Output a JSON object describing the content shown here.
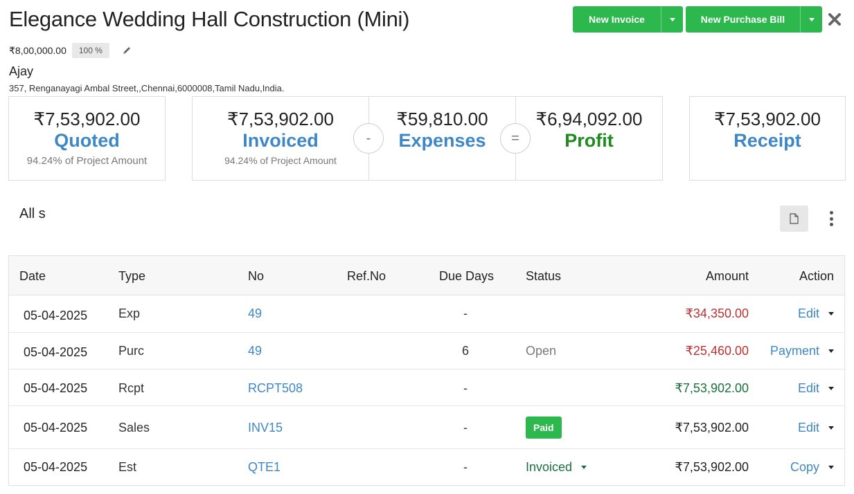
{
  "header": {
    "title": "Elegance Wedding Hall Construction (Mini)",
    "project_amount": "₹8,00,000.00",
    "percent_badge": "100 %",
    "client_name": "Ajay",
    "address": "357, Renganayagi Ambal Street,,Chennai,6000008,Tamil Nadu,India."
  },
  "actions": {
    "new_invoice": "New Invoice",
    "new_purchase_bill": "New Purchase Bill"
  },
  "summary": {
    "quoted": {
      "value": "₹7,53,902.00",
      "label": "Quoted",
      "note": "94.24% of Project Amount"
    },
    "invoiced": {
      "value": "₹7,53,902.00",
      "label": "Invoiced",
      "note": "94.24% of Project Amount"
    },
    "minus_sign": "-",
    "expenses": {
      "value": "₹59,810.00",
      "label": "Expenses"
    },
    "equals_sign": "=",
    "profit": {
      "value": "₹6,94,092.00",
      "label": "Profit"
    },
    "receipt": {
      "value": "₹7,53,902.00",
      "label": "Receipt"
    }
  },
  "section": {
    "title": "All s"
  },
  "table": {
    "columns": {
      "date": "Date",
      "type": "Type",
      "no": "No",
      "ref_no": "Ref.No",
      "due_days": "Due Days",
      "status": "Status",
      "amount": "Amount",
      "action": "Action"
    },
    "rows": [
      {
        "date": "05-04-2025",
        "type": "Exp",
        "no": "49",
        "ref_no": "",
        "due_days": "-",
        "status": "",
        "amount": "₹34,350.00",
        "action": "Edit"
      },
      {
        "date": "05-04-2025",
        "type": "Purc",
        "no": "49",
        "ref_no": "",
        "due_days": "6",
        "status": "Open",
        "amount": "₹25,460.00",
        "action": "Payment"
      },
      {
        "date": "05-04-2025",
        "type": "Rcpt",
        "no": "RCPT508",
        "ref_no": "",
        "due_days": "-",
        "status": "",
        "amount": "₹7,53,902.00",
        "action": "Edit"
      },
      {
        "date": "05-04-2025",
        "type": "Sales",
        "no": "INV15",
        "ref_no": "",
        "due_days": "-",
        "status": "Paid",
        "amount": "₹7,53,902.00",
        "action": "Edit"
      },
      {
        "date": "05-04-2025",
        "type": "Est",
        "no": "QTE1",
        "ref_no": "",
        "due_days": "-",
        "status": "Invoiced",
        "amount": "₹7,53,902.00",
        "action": "Copy"
      }
    ]
  },
  "colors": {
    "accent_green": "#2db84d",
    "link_blue": "#3e87c5",
    "profit_green": "#1f8b1f",
    "amount_red": "#b83232",
    "amount_green": "#19703c"
  },
  "icons": [
    "pencil-icon",
    "close-icon",
    "document-icon",
    "kebab-menu-icon",
    "chevron-down-icon"
  ]
}
